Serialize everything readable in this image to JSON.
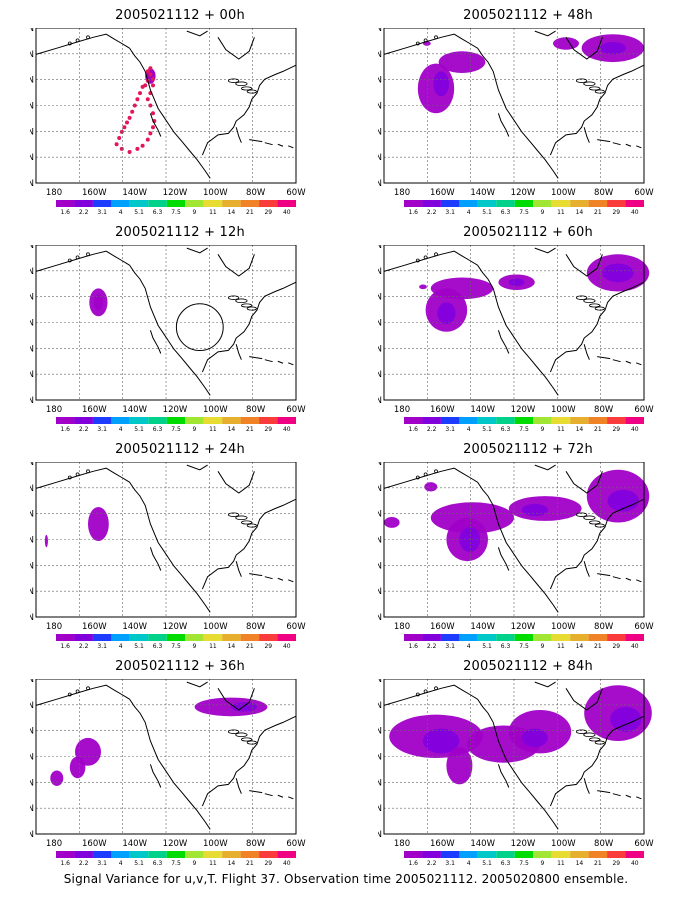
{
  "footer": "Signal Variance for u,v,T. Flight 37. Observation time 2005021112. 2005020800 ensemble.",
  "axes": {
    "lat_labels": [
      "70N",
      "60N",
      "50N",
      "40N",
      "30N",
      "20N",
      "10N"
    ],
    "lon_labels": [
      "180",
      "160W",
      "140W",
      "120W",
      "100W",
      "80W",
      "60W"
    ]
  },
  "colorbar": {
    "labels": [
      "1.6",
      "2.2",
      "3.1",
      "4",
      "5.1",
      "6.3",
      "7.5",
      "9",
      "11",
      "14",
      "21",
      "29",
      "40"
    ],
    "colors": [
      "#a000c8",
      "#8200dc",
      "#1e3cff",
      "#00a0ff",
      "#00c8c8",
      "#00d28c",
      "#00dc00",
      "#a0e632",
      "#e6dc32",
      "#e6af2d",
      "#f08228",
      "#fa3c3c",
      "#f00082"
    ]
  },
  "panels": [
    {
      "title": "2005021112 + 00h",
      "hour": 0
    },
    {
      "title": "2005021112 + 48h",
      "hour": 48
    },
    {
      "title": "2005021112 + 12h",
      "hour": 12
    },
    {
      "title": "2005021112 + 60h",
      "hour": 60
    },
    {
      "title": "2005021112 + 24h",
      "hour": 24
    },
    {
      "title": "2005021112 + 72h",
      "hour": 72
    },
    {
      "title": "2005021112 + 36h",
      "hour": 36
    },
    {
      "title": "2005021112 + 84h",
      "hour": 84
    }
  ]
}
